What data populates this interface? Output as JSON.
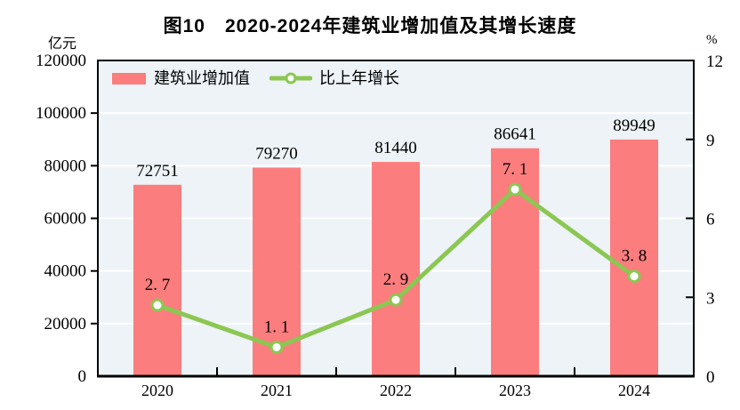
{
  "header": {
    "title": "图10　2020-2024年建筑业增加值及其增长速度",
    "left_unit": "亿元",
    "right_unit": "%"
  },
  "legend": [
    {
      "label": "建筑业增加值",
      "type": "bar"
    },
    {
      "label": "比上年增长",
      "type": "line"
    }
  ],
  "colors": {
    "bar": "#fb7d7d",
    "line": "#8bc752",
    "plot_bg": "#edf3f7",
    "grid": "#ffffff",
    "axis": "#000000",
    "text": "#000000"
  },
  "chart_data": {
    "type": "bar+line",
    "title": "图10　2020-2024年建筑业增加值及其增长速度",
    "categories": [
      "2020",
      "2021",
      "2022",
      "2023",
      "2024"
    ],
    "series": [
      {
        "name": "建筑业增加值",
        "type": "bar",
        "axis": "left",
        "unit": "亿元",
        "values": [
          72751,
          79270,
          81440,
          86641,
          89949
        ],
        "labels": [
          "72751",
          "79270",
          "81440",
          "86641",
          "89949"
        ]
      },
      {
        "name": "比上年增长",
        "type": "line",
        "axis": "right",
        "unit": "%",
        "values": [
          2.7,
          1.1,
          2.9,
          7.1,
          3.8
        ],
        "labels": [
          "2. 7",
          "1. 1",
          "2. 9",
          "7. 1",
          "3. 8"
        ]
      }
    ],
    "left_axis": {
      "label": "亿元",
      "min": 0,
      "max": 120000,
      "ticks": [
        0,
        20000,
        40000,
        60000,
        80000,
        100000,
        120000
      ]
    },
    "right_axis": {
      "label": "%",
      "min": 0,
      "max": 12,
      "ticks": [
        0,
        3,
        6,
        9,
        12
      ]
    },
    "grid": true,
    "legend_position": "top-left-inside"
  }
}
